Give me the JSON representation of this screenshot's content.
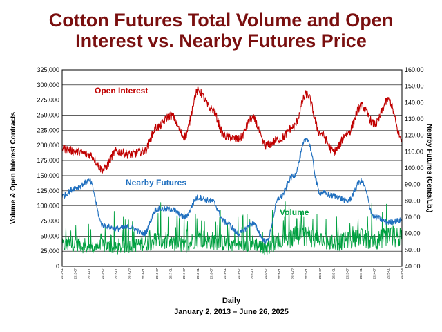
{
  "chart_data": {
    "type": "line",
    "title": "Cotton Futures Total Volume and Open Interest vs. Nearby Futures Price",
    "title_lines": [
      "Cotton Futures Total Volume and Open",
      "Interest vs. Nearby Futures Price"
    ],
    "xlabel": "Daily",
    "date_range": "January 2, 2013 – June 26, 2025",
    "ylabel_left": "Volume & Open Interest Contracts",
    "ylabel_right": "Nearby Futures (Cents/Lb.)",
    "ylim_left": [
      0,
      325000
    ],
    "ylim_right": [
      40,
      160
    ],
    "grid": true,
    "left_ticks": [
      "0",
      "25,000",
      "50,000",
      "75,000",
      "100,000",
      "125,000",
      "150,000",
      "175,000",
      "200,000",
      "225,000",
      "250,000",
      "275,000",
      "300,000",
      "325,000"
    ],
    "right_ticks": [
      "40.00",
      "50.00",
      "60.00",
      "70.00",
      "80.00",
      "90.00",
      "100.00",
      "110.00",
      "120.00",
      "130.00",
      "140.00",
      "150.00",
      "160.00"
    ],
    "x": [
      "2013-01",
      "2013-07",
      "2014-01",
      "2014-07",
      "2015-01",
      "2015-07",
      "2016-01",
      "2016-07",
      "2017-01",
      "2017-07",
      "2018-01",
      "2018-07",
      "2019-01",
      "2019-07",
      "2020-01",
      "2020-07",
      "2021-01",
      "2021-07",
      "2022-01",
      "2022-07",
      "2023-01",
      "2023-07",
      "2024-01",
      "2024-07",
      "2025-01",
      "2025-06"
    ],
    "series": [
      {
        "name": "Open Interest",
        "axis": "left",
        "color": "#c00000",
        "values": [
          195000,
          190000,
          185000,
          160000,
          190000,
          185000,
          190000,
          230000,
          250000,
          215000,
          290000,
          260000,
          215000,
          210000,
          245000,
          200000,
          210000,
          230000,
          285000,
          220000,
          190000,
          220000,
          265000,
          235000,
          275000,
          210000
        ]
      },
      {
        "name": "Nearby Futures",
        "axis": "right",
        "color": "#1f6fbf",
        "values": [
          83,
          88,
          92,
          65,
          63,
          64,
          60,
          75,
          75,
          70,
          82,
          80,
          67,
          60,
          66,
          55,
          82,
          95,
          118,
          85,
          83,
          80,
          92,
          70,
          67,
          68
        ]
      },
      {
        "name": "Volume",
        "axis": "left",
        "color": "#00a040",
        "values": [
          40000,
          45000,
          35000,
          40000,
          35000,
          40000,
          45000,
          50000,
          45000,
          40000,
          55000,
          50000,
          45000,
          40000,
          45000,
          35000,
          50000,
          55000,
          60000,
          50000,
          45000,
          50000,
          55000,
          50000,
          60000,
          55000
        ]
      }
    ],
    "annotations": [
      "Open Interest",
      "Nearby Futures",
      "Volume"
    ]
  }
}
